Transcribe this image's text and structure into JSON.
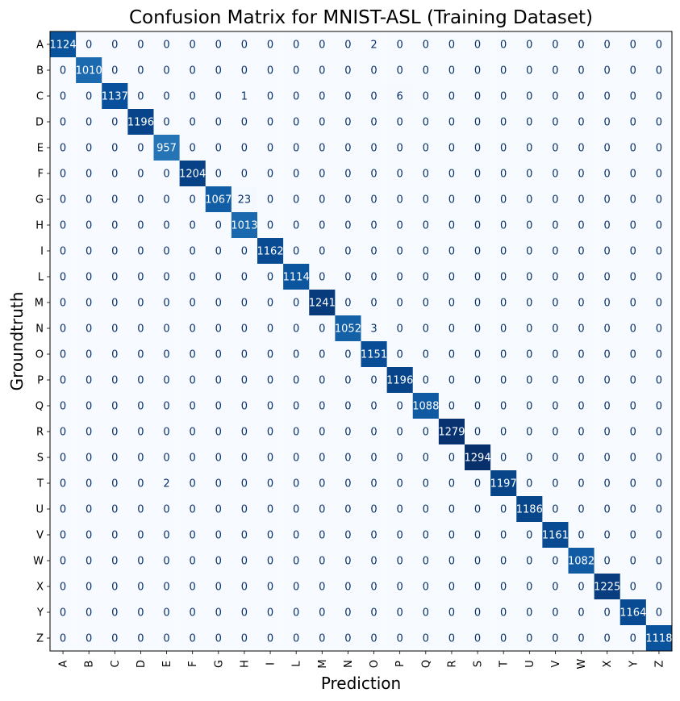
{
  "chart_data": {
    "type": "heatmap",
    "title": "Confusion Matrix for MNIST-ASL (Training Dataset)",
    "xlabel": "Prediction",
    "ylabel": "Groundtruth",
    "x_categories": [
      "A",
      "B",
      "C",
      "D",
      "E",
      "F",
      "G",
      "H",
      "I",
      "L",
      "M",
      "N",
      "O",
      "P",
      "Q",
      "R",
      "S",
      "T",
      "U",
      "V",
      "W",
      "X",
      "Y",
      "Z"
    ],
    "y_categories": [
      "A",
      "B",
      "C",
      "D",
      "E",
      "F",
      "G",
      "H",
      "I",
      "L",
      "M",
      "N",
      "O",
      "P",
      "Q",
      "R",
      "S",
      "T",
      "U",
      "V",
      "W",
      "X",
      "Y",
      "Z"
    ],
    "colormap": "Blues",
    "color_low": "#f7fbff",
    "color_high": "#08306b",
    "value_range": [
      0,
      1294
    ],
    "text_color_light": "#ffffff",
    "text_color_dark": "#08306b",
    "matrix": [
      [
        1124,
        0,
        0,
        0,
        0,
        0,
        0,
        0,
        0,
        0,
        0,
        0,
        2,
        0,
        0,
        0,
        0,
        0,
        0,
        0,
        0,
        0,
        0,
        0
      ],
      [
        0,
        1010,
        0,
        0,
        0,
        0,
        0,
        0,
        0,
        0,
        0,
        0,
        0,
        0,
        0,
        0,
        0,
        0,
        0,
        0,
        0,
        0,
        0,
        0
      ],
      [
        0,
        0,
        1137,
        0,
        0,
        0,
        0,
        1,
        0,
        0,
        0,
        0,
        0,
        6,
        0,
        0,
        0,
        0,
        0,
        0,
        0,
        0,
        0,
        0
      ],
      [
        0,
        0,
        0,
        1196,
        0,
        0,
        0,
        0,
        0,
        0,
        0,
        0,
        0,
        0,
        0,
        0,
        0,
        0,
        0,
        0,
        0,
        0,
        0,
        0
      ],
      [
        0,
        0,
        0,
        0,
        957,
        0,
        0,
        0,
        0,
        0,
        0,
        0,
        0,
        0,
        0,
        0,
        0,
        0,
        0,
        0,
        0,
        0,
        0,
        0
      ],
      [
        0,
        0,
        0,
        0,
        0,
        1204,
        0,
        0,
        0,
        0,
        0,
        0,
        0,
        0,
        0,
        0,
        0,
        0,
        0,
        0,
        0,
        0,
        0,
        0
      ],
      [
        0,
        0,
        0,
        0,
        0,
        0,
        1067,
        23,
        0,
        0,
        0,
        0,
        0,
        0,
        0,
        0,
        0,
        0,
        0,
        0,
        0,
        0,
        0,
        0
      ],
      [
        0,
        0,
        0,
        0,
        0,
        0,
        0,
        1013,
        0,
        0,
        0,
        0,
        0,
        0,
        0,
        0,
        0,
        0,
        0,
        0,
        0,
        0,
        0,
        0
      ],
      [
        0,
        0,
        0,
        0,
        0,
        0,
        0,
        0,
        1162,
        0,
        0,
        0,
        0,
        0,
        0,
        0,
        0,
        0,
        0,
        0,
        0,
        0,
        0,
        0
      ],
      [
        0,
        0,
        0,
        0,
        0,
        0,
        0,
        0,
        0,
        1114,
        0,
        0,
        0,
        0,
        0,
        0,
        0,
        0,
        0,
        0,
        0,
        0,
        0,
        0
      ],
      [
        0,
        0,
        0,
        0,
        0,
        0,
        0,
        0,
        0,
        0,
        1241,
        0,
        0,
        0,
        0,
        0,
        0,
        0,
        0,
        0,
        0,
        0,
        0,
        0
      ],
      [
        0,
        0,
        0,
        0,
        0,
        0,
        0,
        0,
        0,
        0,
        0,
        1052,
        3,
        0,
        0,
        0,
        0,
        0,
        0,
        0,
        0,
        0,
        0,
        0
      ],
      [
        0,
        0,
        0,
        0,
        0,
        0,
        0,
        0,
        0,
        0,
        0,
        0,
        1151,
        0,
        0,
        0,
        0,
        0,
        0,
        0,
        0,
        0,
        0,
        0
      ],
      [
        0,
        0,
        0,
        0,
        0,
        0,
        0,
        0,
        0,
        0,
        0,
        0,
        0,
        1196,
        0,
        0,
        0,
        0,
        0,
        0,
        0,
        0,
        0,
        0
      ],
      [
        0,
        0,
        0,
        0,
        0,
        0,
        0,
        0,
        0,
        0,
        0,
        0,
        0,
        0,
        1088,
        0,
        0,
        0,
        0,
        0,
        0,
        0,
        0,
        0
      ],
      [
        0,
        0,
        0,
        0,
        0,
        0,
        0,
        0,
        0,
        0,
        0,
        0,
        0,
        0,
        0,
        1279,
        0,
        0,
        0,
        0,
        0,
        0,
        0,
        0
      ],
      [
        0,
        0,
        0,
        0,
        0,
        0,
        0,
        0,
        0,
        0,
        0,
        0,
        0,
        0,
        0,
        0,
        1294,
        0,
        0,
        0,
        0,
        0,
        0,
        0
      ],
      [
        0,
        0,
        0,
        0,
        2,
        0,
        0,
        0,
        0,
        0,
        0,
        0,
        0,
        0,
        0,
        0,
        0,
        1197,
        0,
        0,
        0,
        0,
        0,
        0
      ],
      [
        0,
        0,
        0,
        0,
        0,
        0,
        0,
        0,
        0,
        0,
        0,
        0,
        0,
        0,
        0,
        0,
        0,
        0,
        1186,
        0,
        0,
        0,
        0,
        0
      ],
      [
        0,
        0,
        0,
        0,
        0,
        0,
        0,
        0,
        0,
        0,
        0,
        0,
        0,
        0,
        0,
        0,
        0,
        0,
        0,
        1161,
        0,
        0,
        0,
        0
      ],
      [
        0,
        0,
        0,
        0,
        0,
        0,
        0,
        0,
        0,
        0,
        0,
        0,
        0,
        0,
        0,
        0,
        0,
        0,
        0,
        0,
        1082,
        0,
        0,
        0
      ],
      [
        0,
        0,
        0,
        0,
        0,
        0,
        0,
        0,
        0,
        0,
        0,
        0,
        0,
        0,
        0,
        0,
        0,
        0,
        0,
        0,
        0,
        1225,
        0,
        0
      ],
      [
        0,
        0,
        0,
        0,
        0,
        0,
        0,
        0,
        0,
        0,
        0,
        0,
        0,
        0,
        0,
        0,
        0,
        0,
        0,
        0,
        0,
        0,
        1164,
        0
      ],
      [
        0,
        0,
        0,
        0,
        0,
        0,
        0,
        0,
        0,
        0,
        0,
        0,
        0,
        0,
        0,
        0,
        0,
        0,
        0,
        0,
        0,
        0,
        0,
        1118
      ]
    ]
  }
}
